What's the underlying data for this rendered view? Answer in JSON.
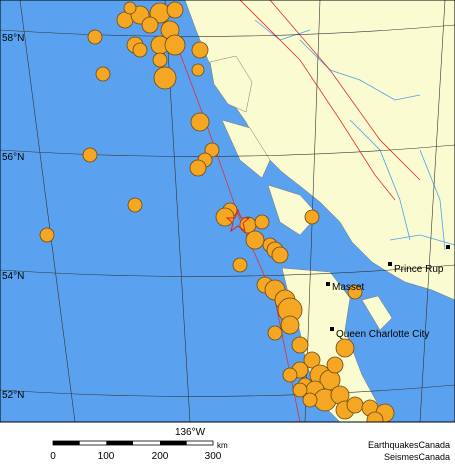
{
  "map": {
    "latitude_labels": [
      "58°N",
      "56°N",
      "54°N",
      "52°N"
    ],
    "longitude_label": "136°W",
    "scale": {
      "ticks": [
        "0",
        "100",
        "200",
        "300"
      ],
      "unit": "km"
    },
    "places": [
      "Prince Rup",
      "Masset",
      "Queen Charlotte City"
    ],
    "credits": [
      "EarthquakesCanada",
      "SeismesCanada"
    ]
  }
}
